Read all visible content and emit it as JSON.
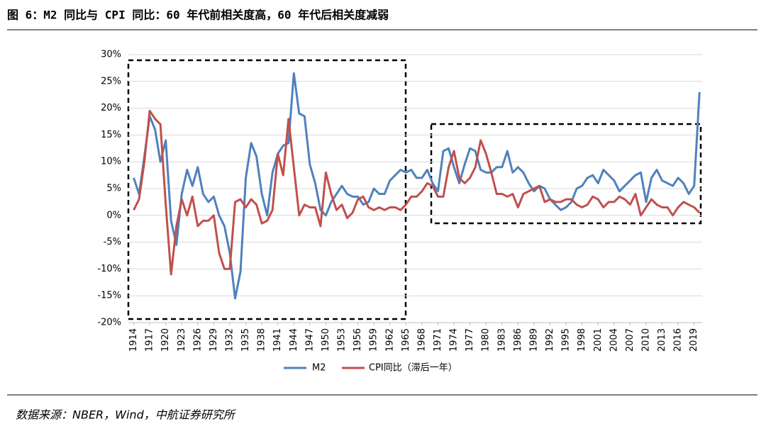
{
  "header": {
    "title": "图 6：M2 同比与 CPI 同比：60 年代前相关度高，60 年代后相关度减弱"
  },
  "chart_data": {
    "type": "line",
    "x": [
      1914,
      1915,
      1916,
      1917,
      1918,
      1919,
      1920,
      1921,
      1922,
      1923,
      1924,
      1925,
      1926,
      1927,
      1928,
      1929,
      1930,
      1931,
      1932,
      1933,
      1934,
      1935,
      1936,
      1937,
      1938,
      1939,
      1940,
      1941,
      1942,
      1943,
      1944,
      1945,
      1946,
      1947,
      1948,
      1949,
      1950,
      1951,
      1952,
      1953,
      1954,
      1955,
      1956,
      1957,
      1958,
      1959,
      1960,
      1961,
      1962,
      1963,
      1964,
      1965,
      1966,
      1967,
      1968,
      1969,
      1970,
      1971,
      1972,
      1973,
      1974,
      1975,
      1976,
      1977,
      1978,
      1979,
      1980,
      1981,
      1982,
      1983,
      1984,
      1985,
      1986,
      1987,
      1988,
      1989,
      1990,
      1991,
      1992,
      1993,
      1994,
      1995,
      1996,
      1997,
      1998,
      1999,
      2000,
      2001,
      2002,
      2003,
      2004,
      2005,
      2006,
      2007,
      2008,
      2009,
      2010,
      2011,
      2012,
      2013,
      2014,
      2015,
      2016,
      2017,
      2018,
      2019,
      2020
    ],
    "series": [
      {
        "name": "M2",
        "color": "#4f81bd",
        "values": [
          7,
          4,
          11,
          18.5,
          16,
          10,
          14,
          -1,
          -5.5,
          4,
          8.5,
          5.5,
          9,
          4,
          2.5,
          3.5,
          0,
          -2,
          -7,
          -15.5,
          -10.5,
          7,
          13.5,
          11,
          4,
          0,
          8,
          11.5,
          13,
          13.5,
          26.5,
          19,
          18.5,
          9.5,
          6,
          1,
          0,
          2.5,
          4,
          5.5,
          4,
          3.5,
          3.5,
          2,
          2.5,
          5,
          4,
          4,
          6.5,
          7.5,
          8.5,
          8,
          8.5,
          7,
          7,
          8.5,
          6,
          4.5,
          12,
          12.5,
          9,
          6,
          9.5,
          12.5,
          12,
          8.5,
          8,
          8,
          9,
          9,
          12,
          8,
          9,
          8,
          6,
          4.5,
          5.5,
          5,
          3,
          2,
          1,
          1.5,
          2.5,
          5,
          5.5,
          7,
          7.5,
          6,
          8.5,
          7.5,
          6.5,
          4.5,
          5.5,
          6.5,
          7.5,
          8,
          2.5,
          7,
          8.5,
          6.5,
          6,
          5.5,
          7,
          6,
          4,
          5.5,
          23
        ]
      },
      {
        "name": "CPI同比（滞后一年）",
        "color": "#c0504d",
        "values": [
          1,
          3,
          10,
          19.5,
          18,
          17,
          2,
          -11,
          -2,
          3,
          0,
          3.5,
          -2,
          -1,
          -1,
          0,
          -7,
          -10,
          -10,
          2.5,
          3,
          1.5,
          3,
          2,
          -1.5,
          -1,
          1,
          11.5,
          7.5,
          18,
          9,
          0,
          2,
          1.5,
          1.5,
          -2,
          8,
          4,
          1,
          2,
          -0.5,
          0.5,
          3,
          3.5,
          1.5,
          1,
          1.5,
          1,
          1.5,
          1.5,
          1,
          2,
          3.5,
          3.5,
          4.5,
          6,
          5.5,
          3.5,
          3.5,
          9,
          12,
          7,
          6,
          7,
          9,
          14,
          11.5,
          8,
          4,
          4,
          3.5,
          4,
          1.5,
          4,
          4.5,
          5,
          5.5,
          2.5,
          3,
          2.5,
          2.5,
          3,
          3,
          2,
          1.5,
          2,
          3.5,
          3,
          1.5,
          2.5,
          2.5,
          3.5,
          3,
          2,
          4,
          0,
          1.5,
          3,
          2,
          1.5,
          1.5,
          0,
          1.5,
          2.5,
          2,
          1.5,
          0.5
        ]
      }
    ],
    "xlim": [
      1913,
      2020.5
    ],
    "xticks": [
      1914,
      1917,
      1920,
      1923,
      1926,
      1929,
      1932,
      1935,
      1938,
      1941,
      1944,
      1947,
      1950,
      1953,
      1956,
      1959,
      1962,
      1965,
      1968,
      1971,
      1974,
      1977,
      1980,
      1983,
      1986,
      1989,
      1992,
      1995,
      1998,
      2001,
      2004,
      2007,
      2010,
      2013,
      2016,
      2019
    ],
    "ylim": [
      -20,
      30
    ],
    "yticks": [
      {
        "value": -20,
        "label": "-20%"
      },
      {
        "value": -15,
        "label": "-15%"
      },
      {
        "value": -10,
        "label": "-10%"
      },
      {
        "value": -5,
        "label": "-5%"
      },
      {
        "value": 0,
        "label": "0%"
      },
      {
        "value": 5,
        "label": "5%"
      },
      {
        "value": 10,
        "label": "10%"
      },
      {
        "value": 15,
        "label": "15%"
      },
      {
        "value": 20,
        "label": "20%"
      },
      {
        "value": 25,
        "label": "25%"
      },
      {
        "value": 30,
        "label": "30%"
      }
    ],
    "grid": true
  },
  "footer": {
    "source": "数据来源：NBER，Wind，中航证券研究所"
  }
}
